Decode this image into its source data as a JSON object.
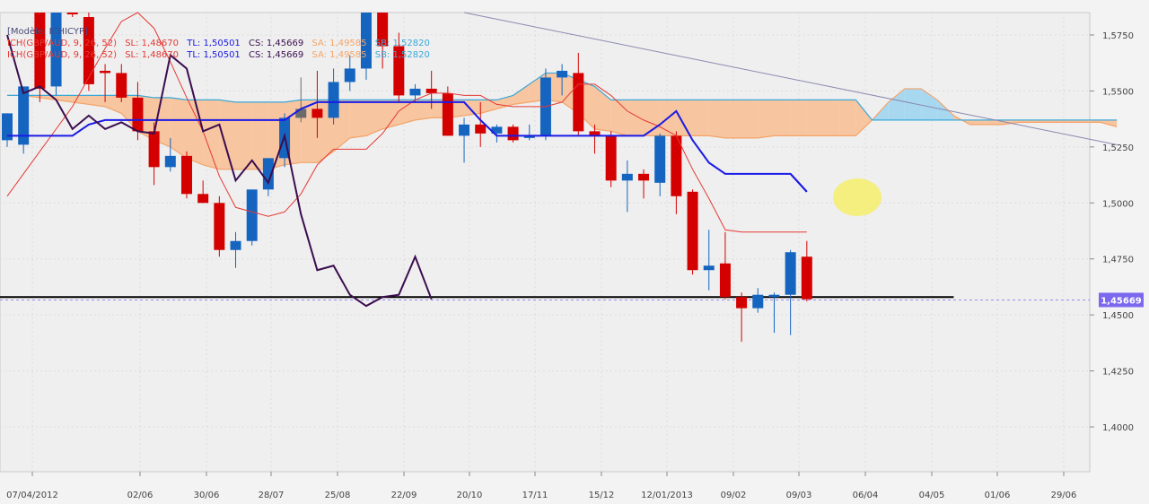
{
  "legend": {
    "model": "[Modèle: ICHICYP]",
    "lines": [
      {
        "name": "ICH(GBP/AUD, 9, 26, 52)",
        "sl": "SL: 1,48670",
        "tl": "TL: 1,50501",
        "cs": "CS: 1,45669",
        "sa": "SA: 1,49585",
        "sb": "SB: 1,52820"
      },
      {
        "name": "ICH(GBP/AUD, 9, 26, 52)",
        "sl": "SL: 1,48670",
        "tl": "TL: 1,50501",
        "cs": "CS: 1,45669",
        "sa": "SA: 1,49585",
        "sb": "SB: 1,52820"
      }
    ]
  },
  "colors": {
    "up": "#1565c0",
    "down": "#d40000",
    "neutral": "#6b6b6b",
    "sl": "#e53935",
    "tl": "#1a1ae6",
    "cs": "#3b0d4f",
    "sa": "#f4a46a",
    "sb": "#3aa8d8",
    "cloud_bear": "#f7c59f",
    "cloud_bull": "#a8d8f0",
    "support": "#000000",
    "trend": "#8a8ab0",
    "highlight": "#f4ee6a",
    "price_tag": "#7b68ee"
  },
  "chart_data": {
    "type": "candlestick",
    "title": "",
    "ylim": [
      1.38,
      1.585
    ],
    "y_ticks": [
      "1,4000",
      "1,4250",
      "1,4500",
      "1,4750",
      "1,5000",
      "1,5250",
      "1,5500",
      "1,5750"
    ],
    "y_tick_values": [
      1.4,
      1.425,
      1.45,
      1.475,
      1.5,
      1.525,
      1.55,
      1.575
    ],
    "x_ticks": [
      "07/04/2012",
      "02/06",
      "30/06",
      "28/07",
      "25/08",
      "22/09",
      "20/10",
      "17/11",
      "15/12",
      "12/01/2013",
      "09/02",
      "09/03",
      "06/04",
      "04/05",
      "01/06",
      "29/06"
    ],
    "last_price_label": "1,45669",
    "last_price": 1.45669,
    "support_level": 1.458,
    "candles": [
      {
        "o": 1.528,
        "h": 1.54,
        "l": 1.525,
        "c": 1.54
      },
      {
        "o": 1.526,
        "h": 1.552,
        "l": 1.522,
        "c": 1.552
      },
      {
        "o": 1.59,
        "h": 1.6,
        "l": 1.545,
        "c": 1.551
      },
      {
        "o": 1.552,
        "h": 1.6,
        "l": 1.548,
        "c": 1.595
      },
      {
        "o": 1.59,
        "h": 1.598,
        "l": 1.583,
        "c": 1.586
      },
      {
        "o": 1.583,
        "h": 1.588,
        "l": 1.55,
        "c": 1.553
      },
      {
        "o": 1.559,
        "h": 1.562,
        "l": 1.545,
        "c": 1.558
      },
      {
        "o": 1.558,
        "h": 1.562,
        "l": 1.545,
        "c": 1.547
      },
      {
        "o": 1.547,
        "h": 1.554,
        "l": 1.528,
        "c": 1.532
      },
      {
        "o": 1.532,
        "h": 1.536,
        "l": 1.508,
        "c": 1.516
      },
      {
        "o": 1.516,
        "h": 1.529,
        "l": 1.514,
        "c": 1.521
      },
      {
        "o": 1.521,
        "h": 1.523,
        "l": 1.502,
        "c": 1.504
      },
      {
        "o": 1.504,
        "h": 1.51,
        "l": 1.5,
        "c": 1.5
      },
      {
        "o": 1.5,
        "h": 1.503,
        "l": 1.476,
        "c": 1.479
      },
      {
        "o": 1.479,
        "h": 1.487,
        "l": 1.471,
        "c": 1.483
      },
      {
        "o": 1.483,
        "h": 1.506,
        "l": 1.481,
        "c": 1.506
      },
      {
        "o": 1.506,
        "h": 1.52,
        "l": 1.503,
        "c": 1.52
      },
      {
        "o": 1.52,
        "h": 1.54,
        "l": 1.516,
        "c": 1.538
      },
      {
        "o": 1.538,
        "h": 1.556,
        "l": 1.536,
        "c": 1.542
      },
      {
        "o": 1.542,
        "h": 1.559,
        "l": 1.529,
        "c": 1.538
      },
      {
        "o": 1.538,
        "h": 1.56,
        "l": 1.535,
        "c": 1.554
      },
      {
        "o": 1.554,
        "h": 1.566,
        "l": 1.55,
        "c": 1.56
      },
      {
        "o": 1.56,
        "h": 1.6,
        "l": 1.555,
        "c": 1.589
      },
      {
        "o": 1.589,
        "h": 1.6,
        "l": 1.56,
        "c": 1.57
      },
      {
        "o": 1.57,
        "h": 1.576,
        "l": 1.545,
        "c": 1.548
      },
      {
        "o": 1.548,
        "h": 1.553,
        "l": 1.545,
        "c": 1.551
      },
      {
        "o": 1.551,
        "h": 1.559,
        "l": 1.542,
        "c": 1.549
      },
      {
        "o": 1.549,
        "h": 1.552,
        "l": 1.53,
        "c": 1.53
      },
      {
        "o": 1.53,
        "h": 1.538,
        "l": 1.518,
        "c": 1.535
      },
      {
        "o": 1.535,
        "h": 1.545,
        "l": 1.525,
        "c": 1.531
      },
      {
        "o": 1.531,
        "h": 1.535,
        "l": 1.527,
        "c": 1.534
      },
      {
        "o": 1.534,
        "h": 1.535,
        "l": 1.527,
        "c": 1.528
      },
      {
        "o": 1.529,
        "h": 1.535,
        "l": 1.528,
        "c": 1.53
      },
      {
        "o": 1.53,
        "h": 1.56,
        "l": 1.528,
        "c": 1.556
      },
      {
        "o": 1.556,
        "h": 1.562,
        "l": 1.548,
        "c": 1.559
      },
      {
        "o": 1.558,
        "h": 1.567,
        "l": 1.53,
        "c": 1.532
      },
      {
        "o": 1.532,
        "h": 1.535,
        "l": 1.522,
        "c": 1.53
      },
      {
        "o": 1.53,
        "h": 1.532,
        "l": 1.507,
        "c": 1.51
      },
      {
        "o": 1.51,
        "h": 1.519,
        "l": 1.496,
        "c": 1.513
      },
      {
        "o": 1.513,
        "h": 1.515,
        "l": 1.502,
        "c": 1.51
      },
      {
        "o": 1.509,
        "h": 1.531,
        "l": 1.503,
        "c": 1.53
      },
      {
        "o": 1.53,
        "h": 1.532,
        "l": 1.495,
        "c": 1.503
      },
      {
        "o": 1.505,
        "h": 1.506,
        "l": 1.468,
        "c": 1.47
      },
      {
        "o": 1.47,
        "h": 1.488,
        "l": 1.461,
        "c": 1.472
      },
      {
        "o": 1.473,
        "h": 1.487,
        "l": 1.457,
        "c": 1.458
      },
      {
        "o": 1.458,
        "h": 1.46,
        "l": 1.438,
        "c": 1.453
      },
      {
        "o": 1.453,
        "h": 1.462,
        "l": 1.451,
        "c": 1.459
      },
      {
        "o": 1.458,
        "h": 1.46,
        "l": 1.442,
        "c": 1.459
      },
      {
        "o": 1.459,
        "h": 1.479,
        "l": 1.441,
        "c": 1.478
      },
      {
        "o": 1.476,
        "h": 1.483,
        "l": 1.456,
        "c": 1.457
      }
    ],
    "neutral_candles": [
      18
    ],
    "series": [
      {
        "name": "TL",
        "values": [
          1.53,
          1.53,
          1.53,
          1.53,
          1.53,
          1.535,
          1.537,
          1.537,
          1.537,
          1.537,
          1.537,
          1.537,
          1.537,
          1.537,
          1.537,
          1.537,
          1.537,
          1.537,
          1.542,
          1.545,
          1.545,
          1.545,
          1.545,
          1.545,
          1.545,
          1.545,
          1.545,
          1.545,
          1.545,
          1.537,
          1.53,
          1.53,
          1.53,
          1.53,
          1.53,
          1.53,
          1.53,
          1.53,
          1.53,
          1.53,
          1.535,
          1.541,
          1.528,
          1.518,
          1.513,
          1.513,
          1.513,
          1.513,
          1.513,
          1.505
        ]
      },
      {
        "name": "SL",
        "values": [
          1.503,
          1.513,
          1.523,
          1.533,
          1.543,
          1.556,
          1.569,
          1.581,
          1.585,
          1.578,
          1.563,
          1.547,
          1.532,
          1.512,
          1.498,
          1.496,
          1.494,
          1.496,
          1.504,
          1.517,
          1.524,
          1.524,
          1.524,
          1.531,
          1.541,
          1.546,
          1.549,
          1.549,
          1.548,
          1.548,
          1.544,
          1.543,
          1.543,
          1.543,
          1.545,
          1.553,
          1.553,
          1.548,
          1.541,
          1.537,
          1.534,
          1.53,
          1.515,
          1.502,
          1.488,
          1.487,
          1.487,
          1.487,
          1.487,
          1.487
        ]
      },
      {
        "name": "CS",
        "values": [
          1.575,
          1.549,
          1.552,
          1.546,
          1.533,
          1.539,
          1.533,
          1.536,
          1.532,
          1.531,
          1.566,
          1.56,
          1.532,
          1.535,
          1.51,
          1.519,
          1.509,
          1.53,
          1.495,
          1.47,
          1.472,
          1.459,
          1.454,
          1.458,
          1.459,
          1.476,
          1.457
        ]
      },
      {
        "name": "SA",
        "values": [
          1.548,
          1.548,
          1.547,
          1.546,
          1.545,
          1.544,
          1.543,
          1.54,
          1.532,
          1.528,
          1.525,
          1.52,
          1.517,
          1.515,
          1.515,
          1.515,
          1.515,
          1.517,
          1.518,
          1.518,
          1.523,
          1.529,
          1.53,
          1.533,
          1.535,
          1.537,
          1.538,
          1.538,
          1.539,
          1.54,
          1.542,
          1.544,
          1.545,
          1.546,
          1.545,
          1.54,
          1.533,
          1.532,
          1.53,
          1.53,
          1.53,
          1.53,
          1.53,
          1.53,
          1.529,
          1.529,
          1.529,
          1.53,
          1.53,
          1.53,
          1.53,
          1.53,
          1.53,
          1.537,
          1.545,
          1.551,
          1.551,
          1.546,
          1.539,
          1.535,
          1.535,
          1.535,
          1.536,
          1.536,
          1.536,
          1.536,
          1.536,
          1.536,
          1.534
        ]
      },
      {
        "name": "SB",
        "values": [
          1.548,
          1.548,
          1.548,
          1.548,
          1.548,
          1.548,
          1.548,
          1.548,
          1.548,
          1.547,
          1.547,
          1.546,
          1.546,
          1.546,
          1.545,
          1.545,
          1.545,
          1.545,
          1.546,
          1.546,
          1.546,
          1.546,
          1.546,
          1.546,
          1.546,
          1.546,
          1.546,
          1.546,
          1.546,
          1.546,
          1.546,
          1.548,
          1.553,
          1.558,
          1.558,
          1.555,
          1.552,
          1.546,
          1.546,
          1.546,
          1.546,
          1.546,
          1.546,
          1.546,
          1.546,
          1.546,
          1.546,
          1.546,
          1.546,
          1.546,
          1.546,
          1.546,
          1.546,
          1.537,
          1.537,
          1.537,
          1.537,
          1.537,
          1.537,
          1.537,
          1.537,
          1.537,
          1.537,
          1.537,
          1.537,
          1.537,
          1.537,
          1.537,
          1.537
        ]
      }
    ],
    "trendline": {
      "from": [
        28,
        1.585
      ],
      "to": [
        68,
        1.526
      ]
    }
  }
}
